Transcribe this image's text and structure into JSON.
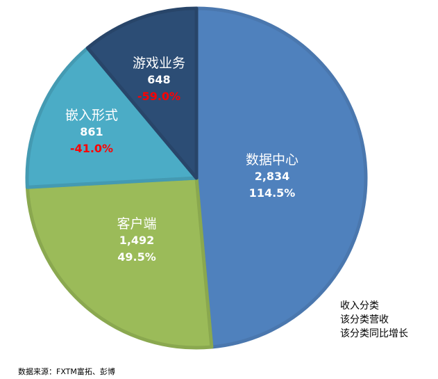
{
  "chart_data": {
    "type": "pie",
    "start_angle": "12 o'clock, clockwise",
    "slices": [
      {
        "label": "数据中心",
        "value": 2834,
        "value_text": "2,834",
        "growth": "114.5%",
        "color": "#4f81bd",
        "border": "#4a77ae"
      },
      {
        "label": "客户端",
        "value": 1492,
        "value_text": "1,492",
        "growth": "49.5%",
        "color": "#9bbb59",
        "border": "#8aa84f"
      },
      {
        "label": "嵌入形式",
        "value": 861,
        "value_text": "861",
        "growth": "-41.0%",
        "color": "#4bacc6",
        "border": "#449ab2"
      },
      {
        "label": "游戏业务",
        "value": 648,
        "value_text": "648",
        "growth": "-59.0%",
        "color": "#2c4d75",
        "border": "#284569"
      }
    ],
    "legend": [
      "收入分类",
      "该分类营收",
      "该分类同比增长"
    ],
    "negative_color": "#ff0000"
  },
  "source": "数据来源：FXTM富拓、彭博"
}
